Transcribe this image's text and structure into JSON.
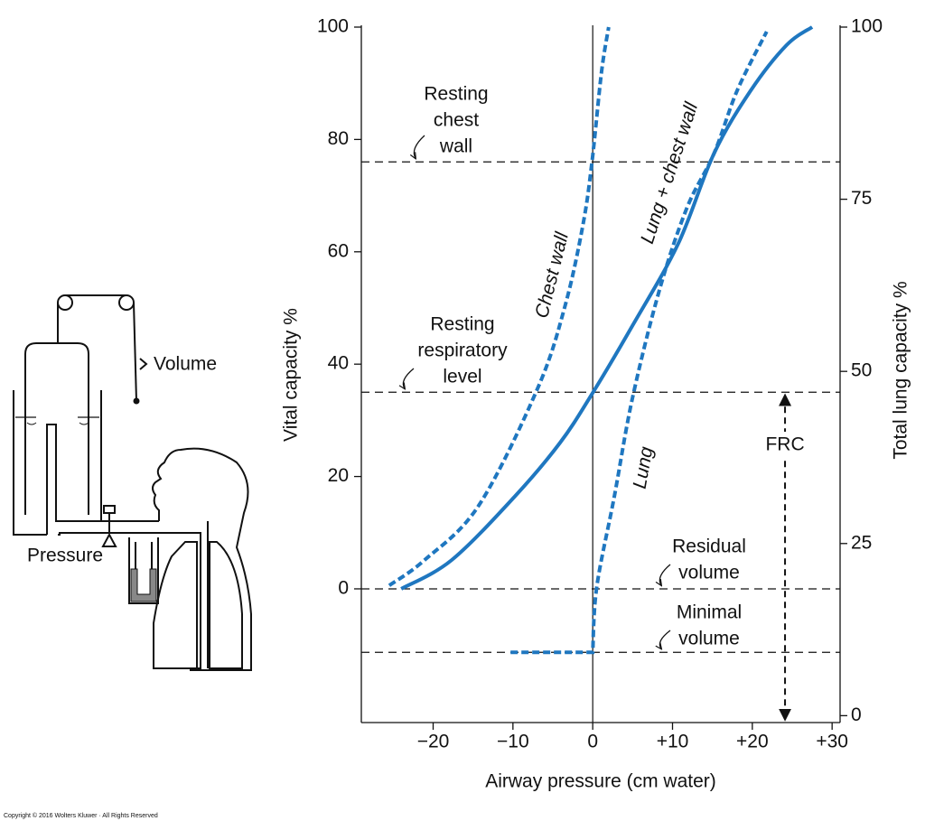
{
  "chart_data": {
    "type": "line",
    "xlabel": "Airway pressure (cm water)",
    "ylabel": "Vital capacity %",
    "y2label": "Total lung capacity %",
    "xlim": [
      -29,
      31
    ],
    "ylim": [
      -23.8,
      100
    ],
    "y2lim": [
      -1,
      100
    ],
    "xticks": [
      {
        "value": -20,
        "label": "−20"
      },
      {
        "value": -10,
        "label": "−10"
      },
      0,
      {
        "value": 10,
        "label": "+10"
      },
      {
        "value": 20,
        "label": "+20"
      },
      {
        "value": 30,
        "label": "+30"
      }
    ],
    "yticks": [
      0,
      20,
      40,
      60,
      80,
      100
    ],
    "y2ticks": [
      0,
      25,
      50,
      75,
      100
    ],
    "vline": 0,
    "series": [
      {
        "name": "Chest wall",
        "color": "#1f77c0",
        "style": "dashed",
        "x": [
          -25.5,
          -21.1,
          -14.3,
          -6.9,
          -3.5,
          -1.25,
          -0.1,
          1.1,
          2.0
        ],
        "values": [
          0.6,
          5.1,
          14.8,
          35.7,
          50.2,
          64.6,
          75.9,
          92,
          100
        ]
      },
      {
        "name": "Lung + chest wall",
        "color": "#1f77c0",
        "style": "solid",
        "x": [
          -24,
          -17.7,
          -9.8,
          -4.1,
          0,
          5,
          10.7,
          15.2,
          19.8,
          24.3,
          27.5
        ],
        "values": [
          0,
          5.1,
          16.4,
          26,
          34.9,
          46.9,
          61.4,
          77.5,
          88.7,
          96.8,
          100
        ]
      },
      {
        "name": "Lung",
        "color": "#1f77c0",
        "style": "dashed",
        "x": [
          -10.3,
          0,
          0.5,
          2.7,
          5,
          8.4,
          11.8,
          15.2,
          18.1,
          21.8
        ],
        "values": [
          -11.3,
          -11.3,
          0.3,
          16.4,
          34.1,
          53.4,
          67.8,
          77.5,
          88.7,
          99.2
        ]
      }
    ],
    "reference_lines": [
      {
        "y": 76,
        "label": [
          "Resting",
          "chest",
          "wall"
        ]
      },
      {
        "y": 35,
        "label": [
          "Resting",
          "respiratory",
          "level"
        ]
      },
      {
        "y": 0,
        "label": [
          "Residual",
          "volume"
        ]
      },
      {
        "y": -11.3,
        "label": [
          "Minimal",
          "volume"
        ]
      }
    ],
    "annotations": [
      {
        "label": "FRC",
        "x": 24.1,
        "y": [
          35,
          -23.8
        ]
      }
    ]
  },
  "diagram": {
    "volume_label": "Volume",
    "pressure_label": "Pressure"
  },
  "copyright": "Copyright © 2016 Wolters Kluwer · All Rights Reserved"
}
